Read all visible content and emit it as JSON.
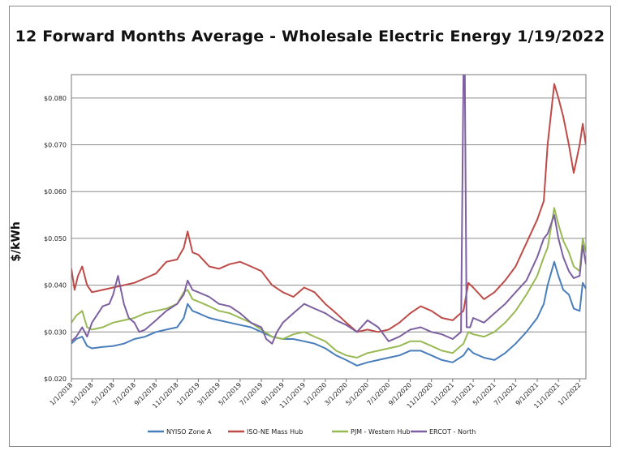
{
  "chart_data": {
    "type": "line",
    "title": "12 Forward Months Average - Wholesale Electric Energy 1/19/2022",
    "xlabel": "",
    "ylabel": "$/kWh",
    "ylim": [
      0.02,
      0.085
    ],
    "yticks": [
      {
        "value": 0.02,
        "label": "$0.020"
      },
      {
        "value": 0.03,
        "label": "$0.030"
      },
      {
        "value": 0.04,
        "label": "$0.040"
      },
      {
        "value": 0.05,
        "label": "$0.050"
      },
      {
        "value": 0.06,
        "label": "$0.060"
      },
      {
        "value": 0.07,
        "label": "$0.070"
      },
      {
        "value": 0.08,
        "label": "$0.080"
      }
    ],
    "xrange": [
      "2018-01-01",
      "2022-01-19"
    ],
    "xticks": [
      "1/1/2018",
      "3/1/2018",
      "5/1/2018",
      "7/1/2018",
      "9/1/2018",
      "11/1/2018",
      "1/1/2019",
      "3/1/2019",
      "5/1/2019",
      "7/1/2019",
      "9/1/2019",
      "11/1/2019",
      "1/1/2020",
      "3/1/2020",
      "5/1/2020",
      "7/1/2020",
      "9/1/2020",
      "11/1/2020",
      "1/1/2021",
      "3/1/2021",
      "5/1/2021",
      "7/1/2021",
      "9/1/2021",
      "11/1/2021",
      "1/1/2022"
    ],
    "grid": true,
    "legend_position": "bottom",
    "series": [
      {
        "name": "NYISO Zone A",
        "color": "#4a7ebb",
        "points": [
          [
            "2018-01-01",
            0.0275
          ],
          [
            "2018-01-15",
            0.0285
          ],
          [
            "2018-02-01",
            0.029
          ],
          [
            "2018-02-15",
            0.027
          ],
          [
            "2018-03-01",
            0.0265
          ],
          [
            "2018-04-01",
            0.0268
          ],
          [
            "2018-05-01",
            0.027
          ],
          [
            "2018-06-01",
            0.0275
          ],
          [
            "2018-07-01",
            0.0285
          ],
          [
            "2018-08-01",
            0.029
          ],
          [
            "2018-09-01",
            0.03
          ],
          [
            "2018-10-01",
            0.0305
          ],
          [
            "2018-11-01",
            0.031
          ],
          [
            "2018-11-20",
            0.033
          ],
          [
            "2018-12-01",
            0.036
          ],
          [
            "2018-12-15",
            0.0345
          ],
          [
            "2019-01-01",
            0.034
          ],
          [
            "2019-02-01",
            0.033
          ],
          [
            "2019-03-01",
            0.0325
          ],
          [
            "2019-04-01",
            0.032
          ],
          [
            "2019-05-01",
            0.0315
          ],
          [
            "2019-06-01",
            0.031
          ],
          [
            "2019-07-01",
            0.03
          ],
          [
            "2019-08-01",
            0.029
          ],
          [
            "2019-09-01",
            0.0285
          ],
          [
            "2019-10-01",
            0.0285
          ],
          [
            "2019-11-01",
            0.028
          ],
          [
            "2019-12-01",
            0.0275
          ],
          [
            "2020-01-01",
            0.0265
          ],
          [
            "2020-02-01",
            0.025
          ],
          [
            "2020-03-01",
            0.024
          ],
          [
            "2020-04-01",
            0.0228
          ],
          [
            "2020-05-01",
            0.0235
          ],
          [
            "2020-06-01",
            0.024
          ],
          [
            "2020-07-01",
            0.0245
          ],
          [
            "2020-08-01",
            0.025
          ],
          [
            "2020-09-01",
            0.026
          ],
          [
            "2020-10-01",
            0.026
          ],
          [
            "2020-11-01",
            0.025
          ],
          [
            "2020-12-01",
            0.024
          ],
          [
            "2021-01-01",
            0.0235
          ],
          [
            "2021-02-01",
            0.025
          ],
          [
            "2021-02-15",
            0.0265
          ],
          [
            "2021-03-01",
            0.0255
          ],
          [
            "2021-04-01",
            0.0245
          ],
          [
            "2021-05-01",
            0.024
          ],
          [
            "2021-06-01",
            0.0255
          ],
          [
            "2021-07-01",
            0.0275
          ],
          [
            "2021-08-01",
            0.03
          ],
          [
            "2021-09-01",
            0.033
          ],
          [
            "2021-09-20",
            0.036
          ],
          [
            "2021-10-01",
            0.04
          ],
          [
            "2021-10-20",
            0.045
          ],
          [
            "2021-11-01",
            0.042
          ],
          [
            "2021-11-15",
            0.039
          ],
          [
            "2021-12-01",
            0.038
          ],
          [
            "2021-12-15",
            0.035
          ],
          [
            "2022-01-01",
            0.0345
          ],
          [
            "2022-01-10",
            0.0405
          ],
          [
            "2022-01-19",
            0.0392
          ]
        ]
      },
      {
        "name": "ISO-NE Mass Hub",
        "color": "#be4b48",
        "points": [
          [
            "2018-01-01",
            0.0435
          ],
          [
            "2018-01-10",
            0.039
          ],
          [
            "2018-01-20",
            0.042
          ],
          [
            "2018-02-01",
            0.044
          ],
          [
            "2018-02-15",
            0.04
          ],
          [
            "2018-03-01",
            0.0385
          ],
          [
            "2018-04-01",
            0.039
          ],
          [
            "2018-05-01",
            0.0395
          ],
          [
            "2018-06-01",
            0.04
          ],
          [
            "2018-07-01",
            0.0405
          ],
          [
            "2018-08-01",
            0.0415
          ],
          [
            "2018-09-01",
            0.0425
          ],
          [
            "2018-10-01",
            0.045
          ],
          [
            "2018-11-01",
            0.0455
          ],
          [
            "2018-11-20",
            0.048
          ],
          [
            "2018-12-01",
            0.0515
          ],
          [
            "2018-12-15",
            0.047
          ],
          [
            "2019-01-01",
            0.0465
          ],
          [
            "2019-02-01",
            0.044
          ],
          [
            "2019-03-01",
            0.0435
          ],
          [
            "2019-04-01",
            0.0445
          ],
          [
            "2019-05-01",
            0.045
          ],
          [
            "2019-06-01",
            0.044
          ],
          [
            "2019-07-01",
            0.043
          ],
          [
            "2019-08-01",
            0.04
          ],
          [
            "2019-09-01",
            0.0385
          ],
          [
            "2019-10-01",
            0.0375
          ],
          [
            "2019-11-01",
            0.0395
          ],
          [
            "2019-12-01",
            0.0385
          ],
          [
            "2020-01-01",
            0.036
          ],
          [
            "2020-02-01",
            0.034
          ],
          [
            "2020-03-01",
            0.032
          ],
          [
            "2020-04-01",
            0.03
          ],
          [
            "2020-05-01",
            0.0305
          ],
          [
            "2020-06-01",
            0.03
          ],
          [
            "2020-07-01",
            0.0305
          ],
          [
            "2020-08-01",
            0.032
          ],
          [
            "2020-09-01",
            0.034
          ],
          [
            "2020-10-01",
            0.0355
          ],
          [
            "2020-11-01",
            0.0345
          ],
          [
            "2020-12-01",
            0.033
          ],
          [
            "2021-01-01",
            0.0325
          ],
          [
            "2021-02-01",
            0.0345
          ],
          [
            "2021-02-15",
            0.0405
          ],
          [
            "2021-03-01",
            0.0395
          ],
          [
            "2021-04-01",
            0.037
          ],
          [
            "2021-05-01",
            0.0385
          ],
          [
            "2021-06-01",
            0.041
          ],
          [
            "2021-07-01",
            0.044
          ],
          [
            "2021-08-01",
            0.049
          ],
          [
            "2021-09-01",
            0.054
          ],
          [
            "2021-09-20",
            0.058
          ],
          [
            "2021-10-01",
            0.07
          ],
          [
            "2021-10-20",
            0.083
          ],
          [
            "2021-11-01",
            0.08
          ],
          [
            "2021-11-15",
            0.076
          ],
          [
            "2021-12-01",
            0.07
          ],
          [
            "2021-12-15",
            0.064
          ],
          [
            "2022-01-01",
            0.07
          ],
          [
            "2022-01-10",
            0.0745
          ],
          [
            "2022-01-19",
            0.07
          ]
        ]
      },
      {
        "name": "PJM - Western Hub",
        "color": "#98b954",
        "points": [
          [
            "2018-01-01",
            0.032
          ],
          [
            "2018-01-15",
            0.0335
          ],
          [
            "2018-02-01",
            0.0345
          ],
          [
            "2018-02-15",
            0.031
          ],
          [
            "2018-03-01",
            0.0305
          ],
          [
            "2018-04-01",
            0.031
          ],
          [
            "2018-05-01",
            0.032
          ],
          [
            "2018-06-01",
            0.0325
          ],
          [
            "2018-07-01",
            0.033
          ],
          [
            "2018-08-01",
            0.034
          ],
          [
            "2018-09-01",
            0.0345
          ],
          [
            "2018-10-01",
            0.035
          ],
          [
            "2018-11-01",
            0.036
          ],
          [
            "2018-11-20",
            0.0385
          ],
          [
            "2018-12-01",
            0.039
          ],
          [
            "2018-12-15",
            0.037
          ],
          [
            "2019-01-01",
            0.0365
          ],
          [
            "2019-02-01",
            0.0355
          ],
          [
            "2019-03-01",
            0.0345
          ],
          [
            "2019-04-01",
            0.034
          ],
          [
            "2019-05-01",
            0.033
          ],
          [
            "2019-06-01",
            0.032
          ],
          [
            "2019-07-01",
            0.0305
          ],
          [
            "2019-08-01",
            0.029
          ],
          [
            "2019-09-01",
            0.0285
          ],
          [
            "2019-10-01",
            0.0295
          ],
          [
            "2019-11-01",
            0.03
          ],
          [
            "2019-12-01",
            0.029
          ],
          [
            "2020-01-01",
            0.028
          ],
          [
            "2020-02-01",
            0.026
          ],
          [
            "2020-03-01",
            0.025
          ],
          [
            "2020-04-01",
            0.0245
          ],
          [
            "2020-05-01",
            0.0255
          ],
          [
            "2020-06-01",
            0.026
          ],
          [
            "2020-07-01",
            0.0265
          ],
          [
            "2020-08-01",
            0.027
          ],
          [
            "2020-09-01",
            0.028
          ],
          [
            "2020-10-01",
            0.028
          ],
          [
            "2020-11-01",
            0.027
          ],
          [
            "2020-12-01",
            0.026
          ],
          [
            "2021-01-01",
            0.0255
          ],
          [
            "2021-02-01",
            0.0275
          ],
          [
            "2021-02-15",
            0.03
          ],
          [
            "2021-03-01",
            0.0295
          ],
          [
            "2021-04-01",
            0.029
          ],
          [
            "2021-05-01",
            0.03
          ],
          [
            "2021-06-01",
            0.032
          ],
          [
            "2021-07-01",
            0.0345
          ],
          [
            "2021-08-01",
            0.038
          ],
          [
            "2021-09-01",
            0.042
          ],
          [
            "2021-09-20",
            0.046
          ],
          [
            "2021-10-01",
            0.048
          ],
          [
            "2021-10-20",
            0.0565
          ],
          [
            "2021-11-01",
            0.053
          ],
          [
            "2021-11-15",
            0.0495
          ],
          [
            "2021-12-01",
            0.047
          ],
          [
            "2021-12-15",
            0.044
          ],
          [
            "2022-01-01",
            0.043
          ],
          [
            "2022-01-10",
            0.05
          ],
          [
            "2022-01-19",
            0.047
          ]
        ]
      },
      {
        "name": "ERCOT - North",
        "color": "#7d60a0",
        "points": [
          [
            "2018-01-01",
            0.028
          ],
          [
            "2018-01-15",
            0.029
          ],
          [
            "2018-02-01",
            0.031
          ],
          [
            "2018-02-15",
            0.029
          ],
          [
            "2018-03-01",
            0.032
          ],
          [
            "2018-04-01",
            0.0355
          ],
          [
            "2018-04-20",
            0.036
          ],
          [
            "2018-05-01",
            0.038
          ],
          [
            "2018-05-15",
            0.042
          ],
          [
            "2018-06-01",
            0.036
          ],
          [
            "2018-06-15",
            0.033
          ],
          [
            "2018-07-01",
            0.032
          ],
          [
            "2018-07-15",
            0.03
          ],
          [
            "2018-08-01",
            0.0305
          ],
          [
            "2018-09-01",
            0.0325
          ],
          [
            "2018-10-01",
            0.0345
          ],
          [
            "2018-11-01",
            0.036
          ],
          [
            "2018-11-20",
            0.038
          ],
          [
            "2018-12-01",
            0.041
          ],
          [
            "2018-12-15",
            0.039
          ],
          [
            "2019-01-01",
            0.0385
          ],
          [
            "2019-02-01",
            0.0375
          ],
          [
            "2019-03-01",
            0.036
          ],
          [
            "2019-04-01",
            0.0355
          ],
          [
            "2019-05-01",
            0.034
          ],
          [
            "2019-06-01",
            0.032
          ],
          [
            "2019-07-01",
            0.031
          ],
          [
            "2019-07-15",
            0.0285
          ],
          [
            "2019-08-01",
            0.0275
          ],
          [
            "2019-08-15",
            0.03
          ],
          [
            "2019-09-01",
            0.032
          ],
          [
            "2019-10-01",
            0.034
          ],
          [
            "2019-11-01",
            0.036
          ],
          [
            "2019-12-01",
            0.035
          ],
          [
            "2020-01-01",
            0.034
          ],
          [
            "2020-02-01",
            0.0325
          ],
          [
            "2020-03-01",
            0.0315
          ],
          [
            "2020-04-01",
            0.03
          ],
          [
            "2020-05-01",
            0.0325
          ],
          [
            "2020-06-01",
            0.031
          ],
          [
            "2020-07-01",
            0.028
          ],
          [
            "2020-08-01",
            0.029
          ],
          [
            "2020-09-01",
            0.0305
          ],
          [
            "2020-10-01",
            0.031
          ],
          [
            "2020-11-01",
            0.03
          ],
          [
            "2020-12-01",
            0.0295
          ],
          [
            "2021-01-01",
            0.0285
          ],
          [
            "2021-01-25",
            0.03
          ],
          [
            "2021-02-01",
            0.085
          ],
          [
            "2021-02-05",
            0.085
          ],
          [
            "2021-02-10",
            0.031
          ],
          [
            "2021-02-20",
            0.031
          ],
          [
            "2021-03-01",
            0.033
          ],
          [
            "2021-04-01",
            0.032
          ],
          [
            "2021-05-01",
            0.034
          ],
          [
            "2021-06-01",
            0.036
          ],
          [
            "2021-07-01",
            0.0385
          ],
          [
            "2021-08-01",
            0.041
          ],
          [
            "2021-09-01",
            0.046
          ],
          [
            "2021-09-20",
            0.05
          ],
          [
            "2021-10-01",
            0.051
          ],
          [
            "2021-10-20",
            0.055
          ],
          [
            "2021-11-01",
            0.05
          ],
          [
            "2021-11-15",
            0.046
          ],
          [
            "2021-12-01",
            0.043
          ],
          [
            "2021-12-15",
            0.0415
          ],
          [
            "2022-01-01",
            0.042
          ],
          [
            "2022-01-10",
            0.0485
          ],
          [
            "2022-01-19",
            0.0445
          ]
        ]
      }
    ]
  }
}
